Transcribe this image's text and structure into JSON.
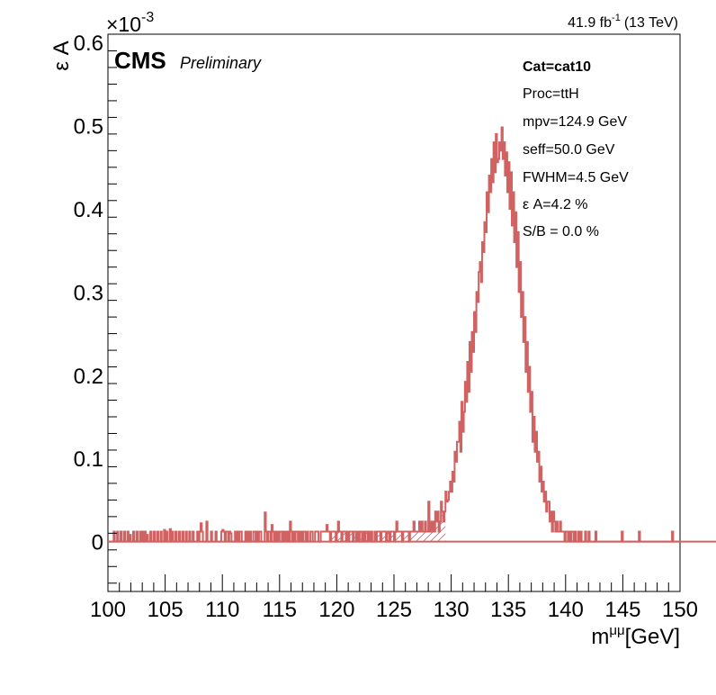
{
  "header": {
    "lumi": "41.9 fb",
    "lumi_exp": "-1",
    "energy": "(13 TeV)",
    "cms": "CMS",
    "preliminary": "Preliminary",
    "y_multiplier": "×10",
    "y_multiplier_exp": "-3"
  },
  "info_box": {
    "cat": "Cat=cat10",
    "proc": "Proc=ttH",
    "mpv": "mpv=124.9 GeV",
    "seff": "seff=50.0 GeV",
    "fwhm": "FWHM=4.5 GeV",
    "effacc": "ε A=4.2 %",
    "sb": "S/B = 0.0 %"
  },
  "colors": {
    "histogram": "#d06262",
    "hatch": "#d06262",
    "frame": "#000000"
  },
  "chart_data": {
    "type": "histogram",
    "xlabel": "m",
    "xlabel_sup": "μμ",
    "xlabel_unit": "[GeV]",
    "ylabel": "ε A",
    "xlim": [
      100,
      150
    ],
    "ylim": [
      -0.06,
      0.61
    ],
    "y_scale_factor": 0.001,
    "xticks": [
      100,
      105,
      110,
      115,
      120,
      125,
      130,
      135,
      140,
      145,
      150
    ],
    "xtick_labels": [
      "100",
      "105",
      "110",
      "115",
      "120",
      "125",
      "130",
      "135",
      "140",
      "145",
      "150"
    ],
    "yticks": [
      0,
      0.1,
      0.2,
      0.3,
      0.4,
      0.5,
      0.6
    ],
    "ytick_labels": [
      "0",
      "0.1",
      "0.2",
      "0.3",
      "0.4",
      "0.5",
      "0.6"
    ],
    "hatch_range": [
      119.5,
      129.5
    ],
    "bin_width": 0.1,
    "series": [
      {
        "values": [
          0,
          0,
          0,
          0,
          0,
          0.012,
          0,
          0,
          0.012,
          0,
          0,
          0.012,
          0,
          0,
          0.012,
          0,
          0,
          0.012,
          0,
          0.008,
          0,
          0,
          0.012,
          0,
          0,
          0.012,
          0,
          0,
          0.012,
          0,
          0.012,
          0,
          0.012,
          0,
          0.008,
          0,
          0,
          0.012,
          0,
          0,
          0.012,
          0,
          0,
          0.012,
          0,
          0,
          0.012,
          0,
          0,
          0.014,
          0,
          0.012,
          0,
          0,
          0.015,
          0,
          0.012,
          0,
          0,
          0.012,
          0,
          0,
          0.012,
          0,
          0,
          0.012,
          0,
          0,
          0.012,
          0,
          0,
          0.012,
          0,
          0,
          0.012,
          0,
          0,
          0,
          0.012,
          0,
          0.012,
          0.022,
          0.012,
          0,
          0,
          0,
          0.024,
          0,
          0,
          0,
          0.012,
          0,
          0,
          0,
          0.012,
          0,
          0,
          0,
          0,
          0.012,
          0.014,
          0.012,
          0,
          0.012,
          0.012,
          0,
          0.012,
          0.01,
          0,
          0,
          0,
          0.012,
          0,
          0.012,
          0,
          0.012,
          0.012,
          0,
          0,
          0,
          0.012,
          0,
          0.012,
          0,
          0.012,
          0,
          0,
          0.012,
          0.012,
          0,
          0.012,
          0,
          0.012,
          0.012,
          0,
          0,
          0,
          0.035,
          0.012,
          0,
          0.012,
          0.012,
          0,
          0.02,
          0.012,
          0,
          0.012,
          0,
          0.012,
          0,
          0.012,
          0.012,
          0,
          0.012,
          0,
          0.012,
          0,
          0.012,
          0,
          0.024,
          0.012,
          0,
          0.012,
          0,
          0.012,
          0.012,
          0,
          0.012,
          0,
          0.012,
          0,
          0.012,
          0.012,
          0,
          0.012,
          0,
          0,
          0.012,
          0.012,
          0,
          0,
          0.012,
          0.012,
          0.012,
          0,
          0,
          0.012,
          0.012,
          0.012,
          0.012,
          0.012,
          0.02,
          0.012,
          0.012,
          0,
          0.012,
          0.012,
          0.012,
          0.012,
          0,
          0.012,
          0.024,
          0.012,
          0.012,
          0,
          0.012,
          0.012,
          0.012,
          0,
          0.012,
          0,
          0.012,
          0.012,
          0.012,
          0,
          0.012,
          0.012,
          0,
          0.012,
          0,
          0.012,
          0.012,
          0,
          0.012,
          0,
          0.012,
          0.012,
          0,
          0.012,
          0,
          0.012,
          0,
          0,
          0.012,
          0,
          0.012,
          0.012,
          0.012,
          0,
          0.012,
          0.012,
          0.012,
          0.012,
          0,
          0.012,
          0.012,
          0,
          0.012,
          0.012,
          0.012,
          0,
          0.012,
          0.024,
          0.012,
          0.012,
          0.012,
          0.012,
          0,
          0.012,
          0.012,
          0.012,
          0.012,
          0.012,
          0,
          0.012,
          0.012,
          0.012,
          0.024,
          0.012,
          0.012,
          0.012,
          0.012,
          0.024,
          0.012,
          0.024,
          0.012,
          0.012,
          0.024,
          0.012,
          0.012,
          0.048,
          0.012,
          0.024,
          0.012,
          0.024,
          0.012,
          0.036,
          0.024,
          0.036,
          0.012,
          0.024,
          0.048,
          0.036,
          0.024,
          0.036,
          0.06,
          0.048,
          0.05,
          0.06,
          0.072,
          0.06,
          0.084,
          0.072,
          0.108,
          0.096,
          0.12,
          0.12,
          0.144,
          0.108,
          0.168,
          0.132,
          0.156,
          0.192,
          0.168,
          0.216,
          0.18,
          0.24,
          0.204,
          0.252,
          0.228,
          0.276,
          0.252,
          0.3,
          0.288,
          0.324,
          0.336,
          0.312,
          0.36,
          0.348,
          0.384,
          0.372,
          0.42,
          0.396,
          0.44,
          0.42,
          0.46,
          0.432,
          0.48,
          0.444,
          0.49,
          0.456,
          0.46,
          0.48,
          0.47,
          0.498,
          0.46,
          0.48,
          0.44,
          0.468,
          0.42,
          0.456,
          0.4,
          0.444,
          0.38,
          0.42,
          0.36,
          0.396,
          0.33,
          0.372,
          0.3,
          0.336,
          0.27,
          0.3,
          0.24,
          0.27,
          0.204,
          0.24,
          0.18,
          0.21,
          0.156,
          0.18,
          0.12,
          0.15,
          0.108,
          0.132,
          0.096,
          0.108,
          0.072,
          0.09,
          0.06,
          0.072,
          0.048,
          0.06,
          0.036,
          0.048,
          0.048,
          0.024,
          0.036,
          0.012,
          0.036,
          0.024,
          0.012,
          0.024,
          0.012,
          0.012,
          0.024,
          0.012,
          0.012,
          0.012,
          0,
          0.012,
          0.012,
          0,
          0.012,
          0,
          0.012,
          0.012,
          0,
          0.012,
          0,
          0,
          0.012,
          0,
          0.012,
          0,
          0,
          0,
          0.012,
          0,
          0,
          0.012,
          0,
          0,
          0,
          0,
          0,
          0.012,
          0,
          0,
          0,
          0,
          0,
          0,
          0,
          0,
          0,
          0,
          0,
          0,
          0,
          0,
          0,
          0,
          0,
          0,
          0,
          0,
          0,
          0,
          0.012,
          0,
          0,
          0,
          0,
          0,
          0,
          0,
          0,
          0,
          0,
          0,
          0,
          0,
          0,
          0.012,
          0,
          0,
          0,
          0,
          0,
          0,
          0,
          0,
          0,
          0,
          0,
          0,
          0,
          0,
          0,
          0,
          0,
          0,
          0,
          0,
          0,
          0,
          0,
          0,
          0,
          0,
          0,
          0,
          0.012,
          0,
          0,
          0,
          0,
          0,
          0,
          0,
          0,
          0,
          0,
          0,
          0,
          0,
          0,
          0,
          0,
          0,
          0,
          0,
          0,
          0,
          0,
          0,
          0,
          0,
          0,
          0,
          0,
          0,
          0,
          0,
          0,
          0,
          0,
          0,
          0,
          0,
          0,
          0,
          0,
          0,
          0,
          0,
          0.012,
          0,
          0,
          0,
          0,
          0,
          0,
          0,
          0,
          0,
          0,
          0.024,
          0,
          0,
          0.012,
          0,
          0,
          0,
          0,
          0,
          0,
          0,
          0,
          0,
          0,
          0,
          0,
          0,
          0,
          0,
          0,
          0.012,
          0,
          0,
          0,
          0,
          0,
          0,
          0,
          0,
          0,
          0,
          0,
          0,
          0,
          0,
          0,
          0,
          0,
          0,
          0,
          0,
          0,
          -0.016,
          0,
          0,
          0,
          0,
          0,
          0,
          0,
          0,
          0
        ]
      }
    ]
  }
}
